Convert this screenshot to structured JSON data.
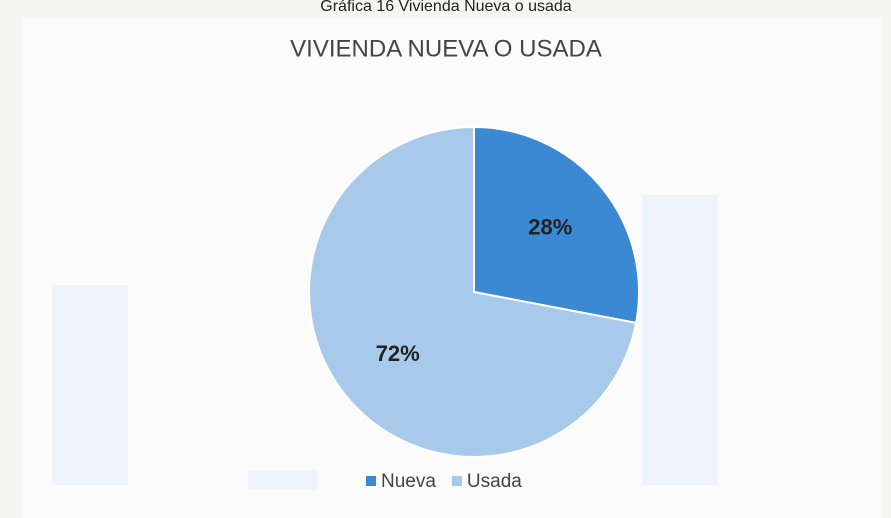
{
  "caption": "Gráfica 16 Vivienda Nueva o usada",
  "chart_data": {
    "type": "pie",
    "title": "VIVIENDA NUEVA O USADA",
    "categories": [
      "Nueva",
      "Usada"
    ],
    "values": [
      28,
      72
    ],
    "value_labels": [
      "28%",
      "72%"
    ],
    "colors": [
      "#3b88d3",
      "#a8caea"
    ],
    "legend": "bottom"
  }
}
